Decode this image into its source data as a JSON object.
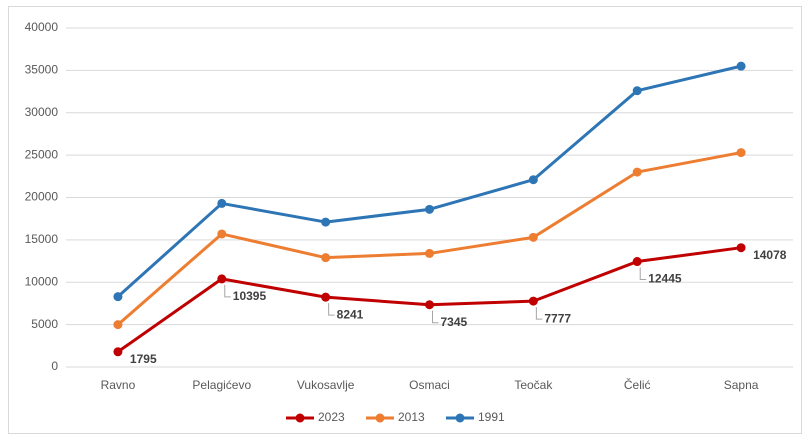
{
  "chart_data": {
    "type": "line",
    "categories": [
      "Ravno",
      "Pelagićevo",
      "Vukosavlje",
      "Osmaci",
      "Teočak",
      "Čelić",
      "Sapna"
    ],
    "series": [
      {
        "name": "2023",
        "color": "#c00000",
        "values": [
          1795,
          10395,
          8241,
          7345,
          7777,
          12445,
          14078
        ]
      },
      {
        "name": "2013",
        "color": "#ed7d31",
        "values": [
          5000,
          15700,
          12900,
          13400,
          15300,
          23000,
          25300
        ]
      },
      {
        "name": "1991",
        "color": "#2e75b6",
        "values": [
          8300,
          19300,
          17100,
          18600,
          22100,
          32600,
          35500
        ]
      }
    ],
    "ylim": [
      0,
      40000
    ],
    "yticks": [
      0,
      5000,
      10000,
      15000,
      20000,
      25000,
      30000,
      35000,
      40000
    ],
    "grid": true,
    "legend": "bottom",
    "data_labels_series": 0
  }
}
